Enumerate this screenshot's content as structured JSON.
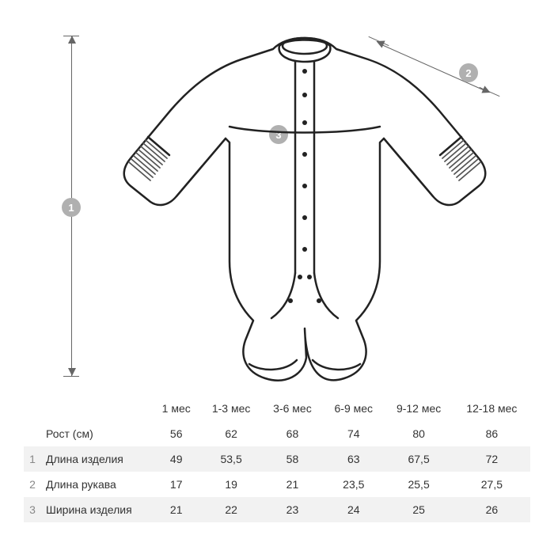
{
  "diagram": {
    "markers": {
      "m1": "1",
      "m2": "2",
      "m3": "3"
    },
    "colors": {
      "background": "#ffffff",
      "marker_bg": "#b0b0b0",
      "marker_text": "#ffffff",
      "dim_line": "#666666",
      "outline": "#222222",
      "cuff_stripe": "#555555",
      "stripe_bg": "#f2f2f2",
      "text": "#333333",
      "num_col": "#888888"
    }
  },
  "table": {
    "columns": [
      "1 мес",
      "1-3 мес",
      "3-6 мес",
      "6-9 мес",
      "9-12 мес",
      "12-18 мес"
    ],
    "rows": [
      {
        "num": "",
        "label": "Рост (см)",
        "values": [
          "56",
          "62",
          "68",
          "74",
          "80",
          "86"
        ],
        "striped": false
      },
      {
        "num": "1",
        "label": "Длина изделия",
        "values": [
          "49",
          "53,5",
          "58",
          "63",
          "67,5",
          "72"
        ],
        "striped": true
      },
      {
        "num": "2",
        "label": "Длина рукава",
        "values": [
          "17",
          "19",
          "21",
          "23,5",
          "25,5",
          "27,5"
        ],
        "striped": false
      },
      {
        "num": "3",
        "label": "Ширина изделия",
        "values": [
          "21",
          "22",
          "23",
          "24",
          "25",
          "26"
        ],
        "striped": true
      }
    ],
    "font_size": 14
  }
}
